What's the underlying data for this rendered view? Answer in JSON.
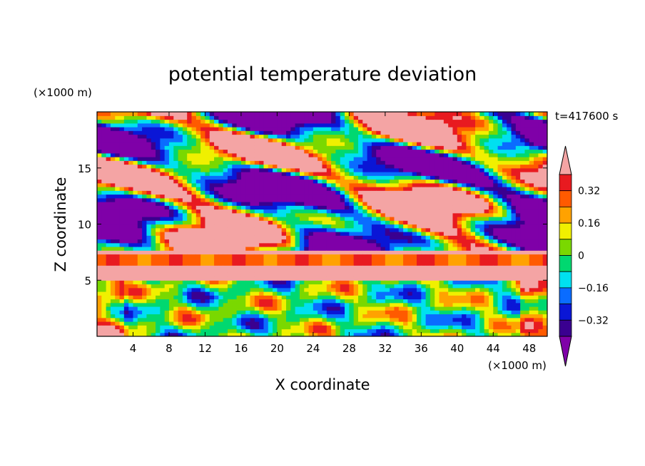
{
  "chart_data": {
    "type": "heatmap",
    "title": "potential temperature deviation",
    "xlabel": "X coordinate",
    "ylabel": "Z coordinate",
    "x_unit": "(×1000 m)",
    "y_unit": "(×1000 m)",
    "time_label": "t=417600 s",
    "xlim": [
      0,
      50
    ],
    "ylim": [
      0,
      20
    ],
    "x_ticks": [
      4,
      8,
      12,
      16,
      20,
      24,
      28,
      32,
      36,
      40,
      44,
      48
    ],
    "y_ticks": [
      5,
      10,
      15
    ],
    "colorbar": {
      "levels": [
        -0.4,
        -0.32,
        -0.24,
        -0.16,
        -0.08,
        0,
        0.08,
        0.16,
        0.24,
        0.32,
        0.4
      ],
      "tick_labels": [
        "0.32",
        "0.16",
        "0",
        "−0.16",
        "−0.32"
      ],
      "tick_values": [
        0.32,
        0.16,
        0,
        -0.16,
        -0.32
      ],
      "colors": [
        "#7f00a8",
        "#3a0090",
        "#0a16d6",
        "#0a6cff",
        "#00e0f0",
        "#00d870",
        "#7ad800",
        "#f0f000",
        "#ffa200",
        "#ff5a00",
        "#e81a20",
        "#f4a4a4"
      ],
      "extend": "both"
    },
    "field_description_layers": [
      {
        "z_range": [
          0,
          5
        ],
        "character": "mixed turbulent eddies"
      },
      {
        "z_range": [
          5,
          7.5
        ],
        "character": "stable inversion band, positive"
      },
      {
        "z_range": [
          7.5,
          20
        ],
        "character": "alternating large patches of strongly positive and strongly negative"
      }
    ]
  },
  "colors": {
    "frame": "#000000",
    "background": "#ffffff"
  }
}
